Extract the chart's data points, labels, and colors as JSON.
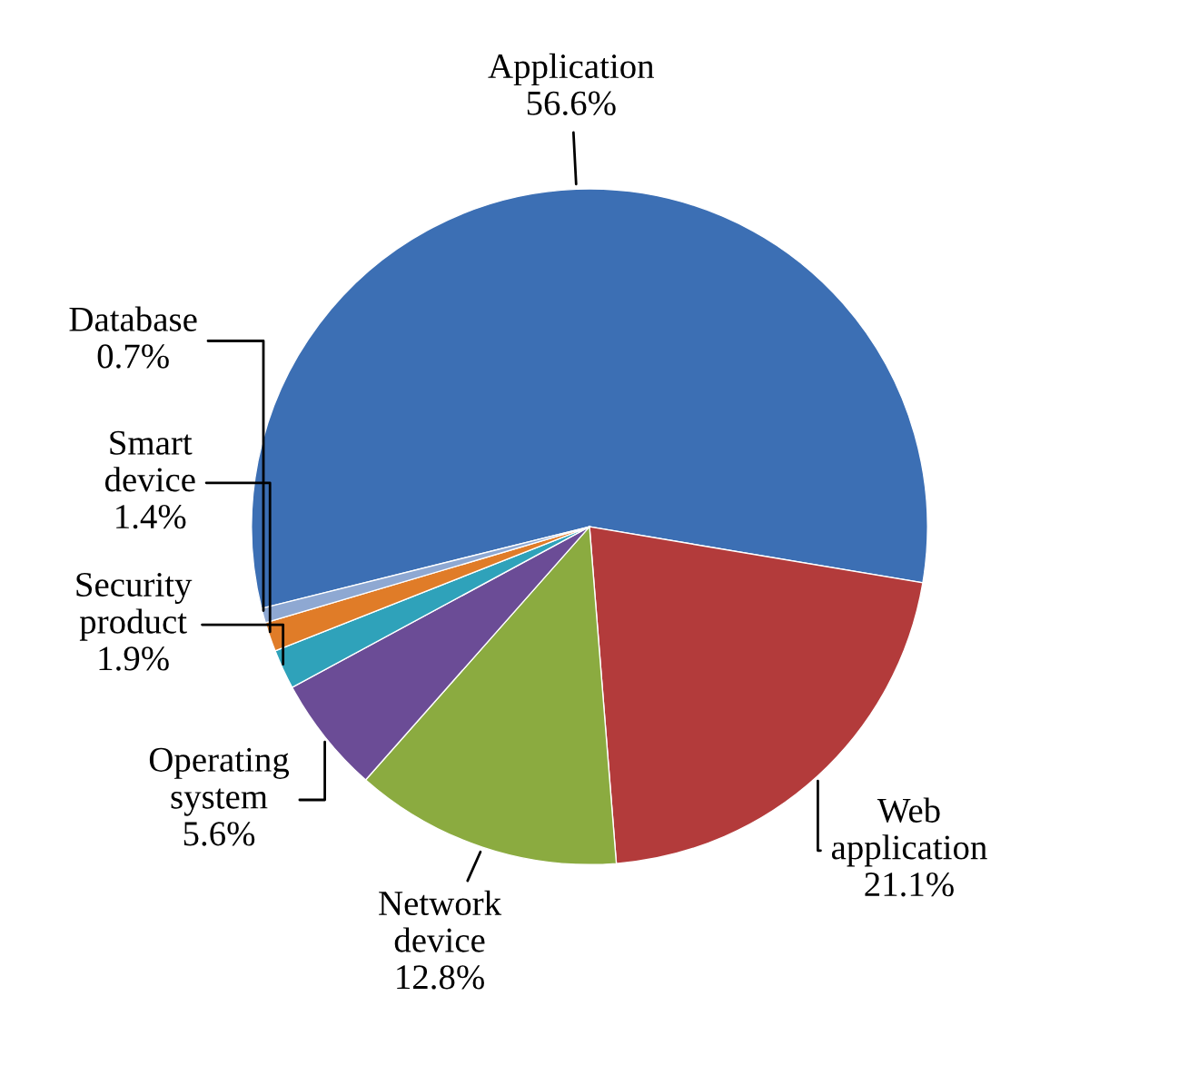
{
  "chart_data": {
    "type": "pie",
    "categories": [
      "Application",
      "Web application",
      "Network device",
      "Operating system",
      "Security product",
      "Smart device",
      "Database"
    ],
    "values": [
      56.6,
      21.1,
      12.8,
      5.6,
      1.9,
      1.4,
      0.7
    ],
    "value_labels": [
      "56.6%",
      "21.1%",
      "12.8%",
      "5.6%",
      "1.9%",
      "1.4%",
      "0.7%"
    ],
    "colors": [
      "#3c6fb4",
      "#b33b3b",
      "#8bab40",
      "#6b4c96",
      "#2fa2ba",
      "#e07c28",
      "#8ea8d2"
    ],
    "legend": false
  }
}
